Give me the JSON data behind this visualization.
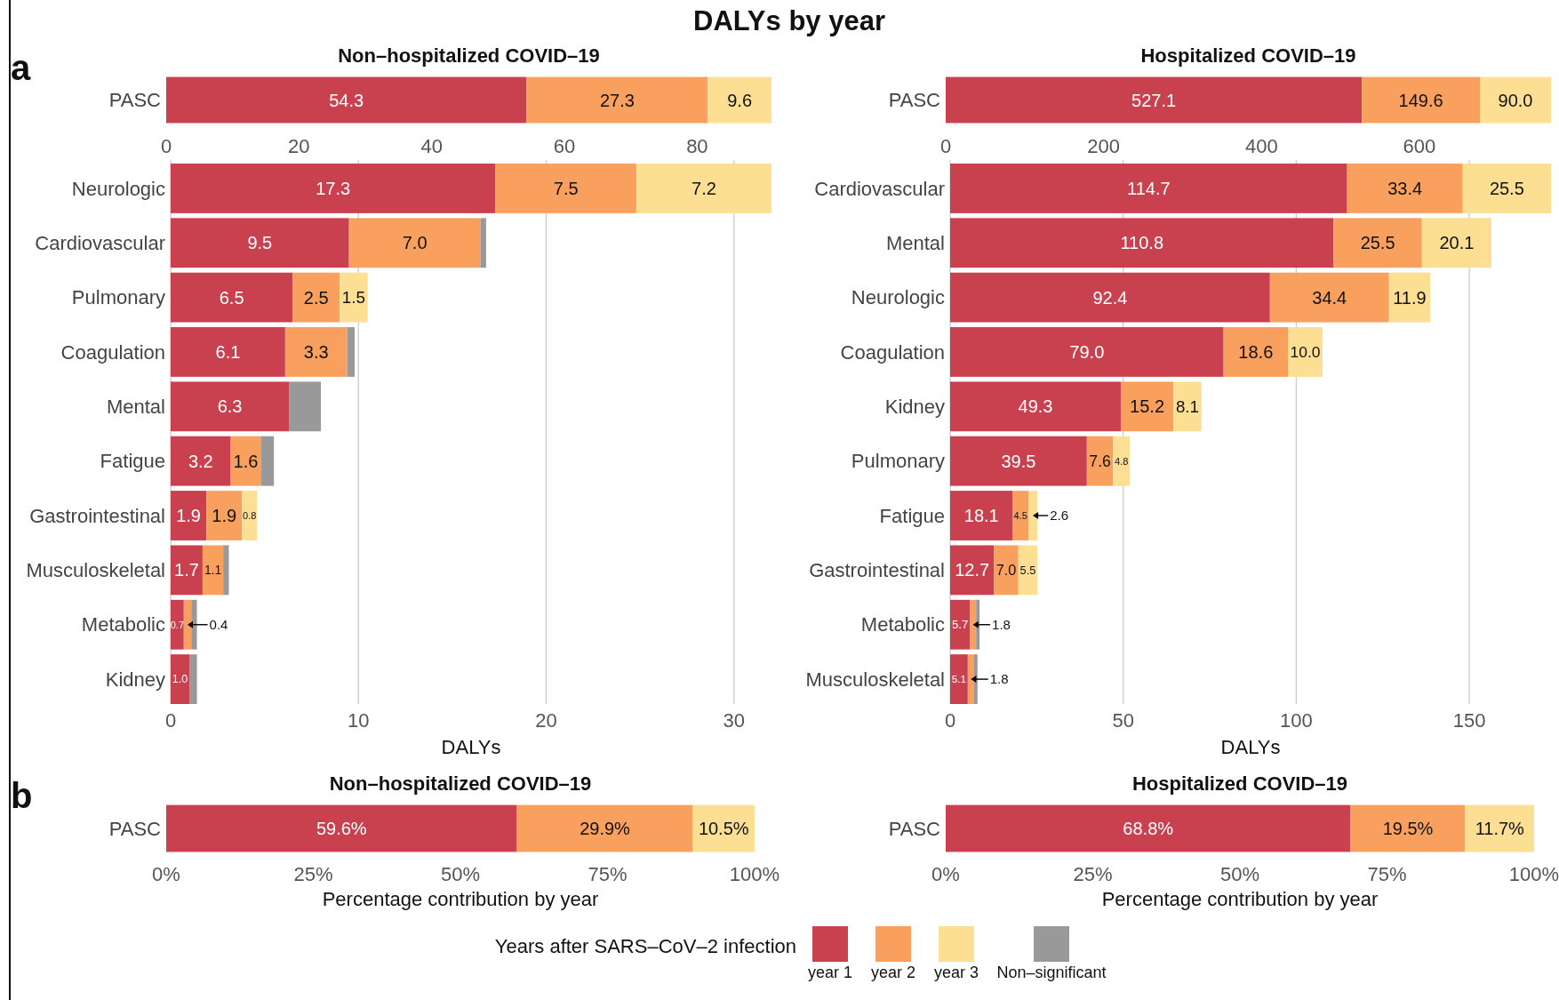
{
  "chart_data": [
    {
      "type": "bar",
      "orientation": "horizontal",
      "stacked": true,
      "title": "Non–hospitalized COVID–19",
      "annotations": [
        "DALYs by year",
        "a"
      ],
      "categories": [
        "PASC"
      ],
      "xlim": [
        0,
        91.2
      ],
      "xticks": [
        0,
        20,
        40,
        60,
        80
      ],
      "series": [
        {
          "color": "#c9404f",
          "values": [
            54.3
          ],
          "value_labels": [
            "54.3"
          ]
        },
        {
          "color": "#f9a05e",
          "values": [
            27.3
          ],
          "value_labels": [
            "27.3"
          ]
        },
        {
          "color": "#fddf94",
          "values": [
            9.6
          ],
          "value_labels": [
            "9.6"
          ]
        }
      ]
    },
    {
      "type": "bar",
      "orientation": "horizontal",
      "stacked": true,
      "title": "Hospitalized COVID–19",
      "categories": [
        "PASC"
      ],
      "xlim": [
        0,
        766.7
      ],
      "xticks": [
        0,
        200,
        400,
        600
      ],
      "series": [
        {
          "color": "#c9404f",
          "values": [
            527.1
          ],
          "value_labels": [
            "527.1"
          ]
        },
        {
          "color": "#f9a05e",
          "values": [
            149.6
          ],
          "value_labels": [
            "149.6"
          ]
        },
        {
          "color": "#fddf94",
          "values": [
            90.0
          ],
          "value_labels": [
            "90.0"
          ]
        }
      ]
    },
    {
      "type": "bar",
      "orientation": "horizontal",
      "stacked": true,
      "xlabel": "DALYs",
      "legend": "bottom",
      "legend_title": "Years after SARS–CoV–2 infection",
      "categories": [
        "Neurologic",
        "Cardiovascular",
        "Pulmonary",
        "Coagulation",
        "Mental",
        "Fatigue",
        "Gastrointestinal",
        "Musculoskeletal",
        "Metabolic",
        "Kidney"
      ],
      "xlim": [
        0,
        32.0
      ],
      "xticks": [
        0,
        10,
        20,
        30
      ],
      "grid": "x",
      "series": [
        {
          "name": "year 1",
          "color": "#c9404f",
          "values": [
            17.3,
            9.5,
            6.5,
            6.1,
            6.3,
            3.2,
            1.9,
            1.7,
            0.7,
            1.0
          ],
          "value_labels": [
            "17.3",
            "9.5",
            "6.5",
            "6.1",
            "6.3",
            "3.2",
            "1.9",
            "1.7",
            "0.7",
            "1.0"
          ]
        },
        {
          "name": "year 2",
          "color": "#f9a05e",
          "values": [
            7.5,
            7.0,
            2.5,
            3.3,
            null,
            1.6,
            1.9,
            1.1,
            0.4,
            null
          ],
          "value_labels": [
            "7.5",
            "7.0",
            "2.5",
            "3.3",
            null,
            "1.6",
            "1.9",
            "1.1",
            "0.4",
            null
          ]
        },
        {
          "name": "year 3",
          "color": "#fddf94",
          "values": [
            7.2,
            null,
            1.5,
            null,
            null,
            null,
            0.8,
            null,
            null,
            null
          ],
          "value_labels": [
            "7.2",
            null,
            "1.5",
            null,
            null,
            null,
            "0.8",
            null,
            null,
            null
          ]
        },
        {
          "name": "Non–significant",
          "color": "#999999",
          "values": [
            null,
            0.3,
            null,
            0.4,
            1.7,
            0.7,
            null,
            0.3,
            0.3,
            0.4
          ]
        }
      ]
    },
    {
      "type": "bar",
      "orientation": "horizontal",
      "stacked": true,
      "xlabel": "DALYs",
      "categories": [
        "Cardiovascular",
        "Mental",
        "Neurologic",
        "Coagulation",
        "Kidney",
        "Pulmonary",
        "Fatigue",
        "Gastrointestinal",
        "Metabolic",
        "Musculoskeletal"
      ],
      "xlim": [
        0,
        173.6
      ],
      "xticks": [
        0,
        50,
        100,
        150
      ],
      "grid": "x",
      "series": [
        {
          "color": "#c9404f",
          "values": [
            114.7,
            110.8,
            92.4,
            79.0,
            49.3,
            39.5,
            18.1,
            12.7,
            5.7,
            5.1
          ],
          "value_labels": [
            "114.7",
            "110.8",
            "92.4",
            "79.0",
            "49.3",
            "39.5",
            "18.1",
            "12.7",
            "5.7",
            "5.1"
          ]
        },
        {
          "color": "#f9a05e",
          "values": [
            33.4,
            25.5,
            34.4,
            18.6,
            15.2,
            7.6,
            4.5,
            7.0,
            1.8,
            1.8
          ],
          "value_labels": [
            "33.4",
            "25.5",
            "34.4",
            "18.6",
            "15.2",
            "7.6",
            "4.5",
            "7.0",
            "1.8",
            "1.8"
          ]
        },
        {
          "color": "#fddf94",
          "values": [
            25.5,
            20.1,
            11.9,
            10.0,
            8.1,
            4.8,
            2.6,
            5.5,
            null,
            null
          ],
          "value_labels": [
            "25.5",
            "20.1",
            "11.9",
            "10.0",
            "8.1",
            "4.8",
            "2.6",
            "5.5",
            null,
            null
          ]
        },
        {
          "color": "#999999",
          "values": [
            null,
            null,
            null,
            null,
            null,
            null,
            null,
            null,
            1.0,
            1.0
          ]
        }
      ]
    },
    {
      "type": "bar",
      "orientation": "horizontal",
      "stacked": true,
      "title": "Non–hospitalized COVID–19",
      "xlabel": "Percentage contribution by year",
      "annotations": [
        "b"
      ],
      "categories": [
        "PASC"
      ],
      "xlim": [
        0,
        100
      ],
      "xticks": [
        {
          "value": 0,
          "label": "0%"
        },
        {
          "value": 25,
          "label": "25%"
        },
        {
          "value": 50,
          "label": "50%"
        },
        {
          "value": 75,
          "label": "75%"
        },
        {
          "value": 100,
          "label": "100%"
        }
      ],
      "series": [
        {
          "color": "#c9404f",
          "values": [
            59.6
          ],
          "value_labels": [
            "59.6%"
          ]
        },
        {
          "color": "#f9a05e",
          "values": [
            29.9
          ],
          "value_labels": [
            "29.9%"
          ]
        },
        {
          "color": "#fddf94",
          "values": [
            10.5
          ],
          "value_labels": [
            "10.5%"
          ]
        }
      ]
    },
    {
      "type": "bar",
      "orientation": "horizontal",
      "stacked": true,
      "title": "Hospitalized COVID–19",
      "xlabel": "Percentage contribution by year",
      "categories": [
        "PASC"
      ],
      "xlim": [
        0,
        100
      ],
      "xticks": [
        {
          "value": 0,
          "label": "0%"
        },
        {
          "value": 25,
          "label": "25%"
        },
        {
          "value": 50,
          "label": "50%"
        },
        {
          "value": 75,
          "label": "75%"
        },
        {
          "value": 100,
          "label": "100%"
        }
      ],
      "series": [
        {
          "color": "#c9404f",
          "values": [
            68.8
          ],
          "value_labels": [
            "68.8%"
          ]
        },
        {
          "color": "#f9a05e",
          "values": [
            19.5
          ],
          "value_labels": [
            "19.5%"
          ]
        },
        {
          "color": "#fddf94",
          "values": [
            11.7
          ],
          "value_labels": [
            "11.7%"
          ]
        }
      ]
    }
  ]
}
